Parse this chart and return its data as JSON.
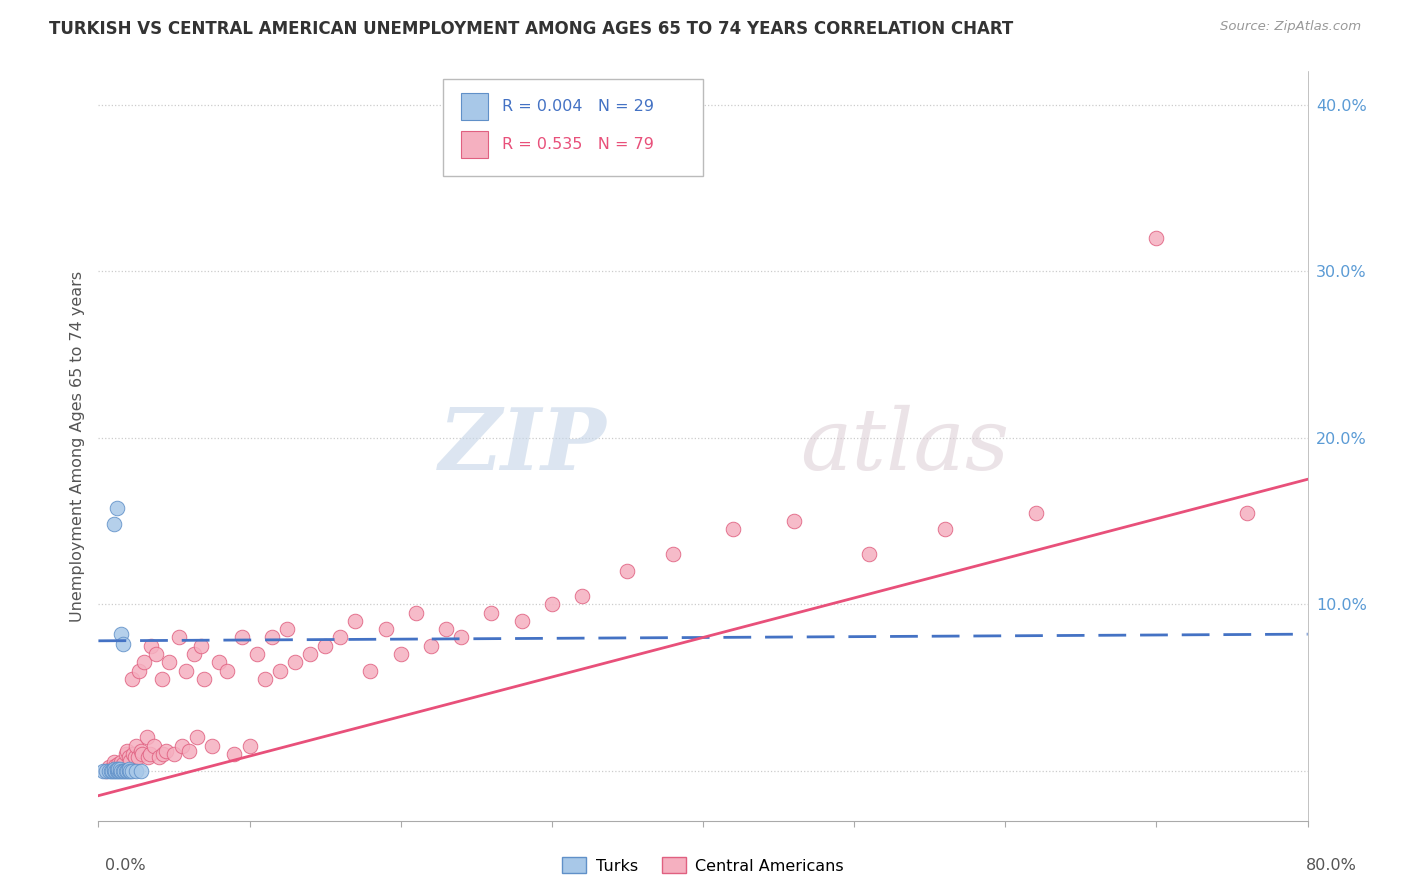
{
  "title": "TURKISH VS CENTRAL AMERICAN UNEMPLOYMENT AMONG AGES 65 TO 74 YEARS CORRELATION CHART",
  "source": "Source: ZipAtlas.com",
  "ylabel": "Unemployment Among Ages 65 to 74 years",
  "xmin": 0.0,
  "xmax": 0.8,
  "ymin": -0.03,
  "ymax": 0.42,
  "blue_R": "0.004",
  "blue_N": "29",
  "pink_R": "0.535",
  "pink_N": "79",
  "blue_fill": "#a8c8e8",
  "pink_fill": "#f5b0c0",
  "blue_edge": "#6090c8",
  "pink_edge": "#e06080",
  "blue_line": "#4472c4",
  "pink_line": "#e8507a",
  "legend_turks": "Turks",
  "legend_ca": "Central Americans",
  "watermark_zip": "ZIP",
  "watermark_atlas": "atlas",
  "grid_color": "#cccccc",
  "ytick_color": "#5b9bd5",
  "yticks": [
    0.0,
    0.1,
    0.2,
    0.3,
    0.4
  ],
  "ytick_labels": [
    "",
    "10.0%",
    "20.0%",
    "30.0%",
    "40.0%"
  ],
  "blue_trend": [
    0.0,
    0.8,
    0.078,
    0.082
  ],
  "pink_trend": [
    0.0,
    0.8,
    -0.015,
    0.175
  ],
  "turks_x": [
    0.003,
    0.005,
    0.007,
    0.008,
    0.009,
    0.01,
    0.01,
    0.011,
    0.012,
    0.012,
    0.013,
    0.013,
    0.014,
    0.014,
    0.015,
    0.015,
    0.016,
    0.016,
    0.017,
    0.018,
    0.019,
    0.02,
    0.02,
    0.021,
    0.022,
    0.025,
    0.028,
    0.01,
    0.012
  ],
  "turks_y": [
    0.0,
    0.0,
    0.0,
    0.0,
    0.0,
    0.0,
    0.001,
    0.0,
    0.0,
    0.001,
    0.0,
    0.001,
    0.0,
    0.001,
    0.0,
    0.082,
    0.076,
    0.0,
    0.0,
    0.0,
    0.0,
    0.0,
    0.001,
    0.0,
    0.0,
    0.0,
    0.0,
    0.148,
    0.158
  ],
  "ca_x": [
    0.005,
    0.007,
    0.008,
    0.01,
    0.011,
    0.012,
    0.013,
    0.014,
    0.015,
    0.016,
    0.018,
    0.019,
    0.02,
    0.021,
    0.022,
    0.023,
    0.024,
    0.025,
    0.026,
    0.027,
    0.028,
    0.029,
    0.03,
    0.032,
    0.033,
    0.034,
    0.035,
    0.037,
    0.038,
    0.04,
    0.042,
    0.043,
    0.045,
    0.047,
    0.05,
    0.053,
    0.055,
    0.058,
    0.06,
    0.063,
    0.065,
    0.068,
    0.07,
    0.075,
    0.08,
    0.085,
    0.09,
    0.095,
    0.1,
    0.105,
    0.11,
    0.115,
    0.12,
    0.125,
    0.13,
    0.14,
    0.15,
    0.16,
    0.17,
    0.18,
    0.19,
    0.2,
    0.21,
    0.22,
    0.23,
    0.24,
    0.26,
    0.28,
    0.3,
    0.32,
    0.35,
    0.38,
    0.42,
    0.46,
    0.51,
    0.56,
    0.62,
    0.7,
    0.76
  ],
  "ca_y": [
    0.0,
    0.002,
    0.001,
    0.005,
    0.003,
    0.002,
    0.004,
    0.003,
    0.005,
    0.004,
    0.01,
    0.012,
    0.008,
    0.006,
    0.055,
    0.01,
    0.008,
    0.015,
    0.008,
    0.06,
    0.012,
    0.01,
    0.065,
    0.02,
    0.008,
    0.01,
    0.075,
    0.015,
    0.07,
    0.008,
    0.055,
    0.01,
    0.012,
    0.065,
    0.01,
    0.08,
    0.015,
    0.06,
    0.012,
    0.07,
    0.02,
    0.075,
    0.055,
    0.015,
    0.065,
    0.06,
    0.01,
    0.08,
    0.015,
    0.07,
    0.055,
    0.08,
    0.06,
    0.085,
    0.065,
    0.07,
    0.075,
    0.08,
    0.09,
    0.06,
    0.085,
    0.07,
    0.095,
    0.075,
    0.085,
    0.08,
    0.095,
    0.09,
    0.1,
    0.105,
    0.12,
    0.13,
    0.145,
    0.15,
    0.13,
    0.145,
    0.155,
    0.32,
    0.155
  ]
}
